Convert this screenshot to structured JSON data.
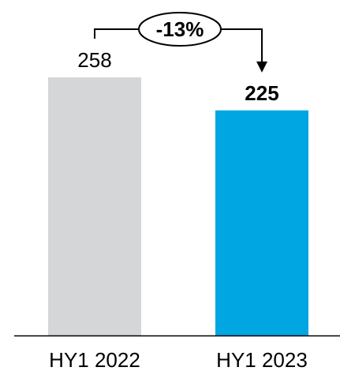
{
  "chart_data": {
    "type": "bar",
    "categories": [
      "HY1 2022",
      "HY1 2023"
    ],
    "values": [
      258,
      225
    ],
    "value_labels": [
      "258",
      "225"
    ],
    "colors": [
      "#d5d6d8",
      "#00a6e2"
    ],
    "ylim": [
      0,
      300
    ],
    "grid": false,
    "annotation": {
      "label": "-13%",
      "from": "HY1 2022",
      "to": "HY1 2023"
    }
  }
}
